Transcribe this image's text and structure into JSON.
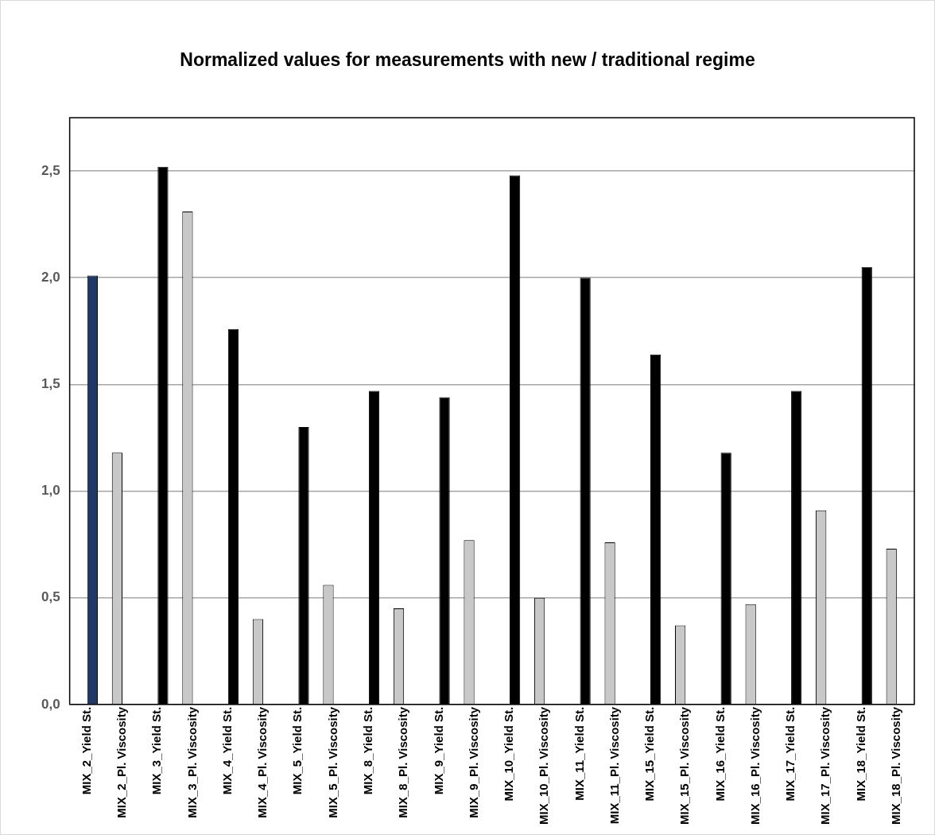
{
  "chart_data": {
    "type": "bar",
    "title": "Normalized values for measurements with new / traditional regime",
    "categories": [
      "MIX_2_Yield St.",
      "MIX_2_Pl. Viscosity",
      "MIX_3_Yield St.",
      "MIX_3_Pl. Viscosity",
      "MIX_4_Yield St.",
      "MIX_4_Pl. Viscosity",
      "MIX_5_Yield St.",
      "MIX_5_Pl. Viscosity",
      "MIX_8_Yield St.",
      "MIX_8_Pl. Viscosity",
      "MIX_9_Yield St.",
      "MIX_9_Pl. Viscosity",
      "MIX_10_Yield St.",
      "MIX_10_Pl. Viscosity",
      "MIX_11_Yield St.",
      "MIX_11_Pl. Viscosity",
      "MIX_15_Yield St.",
      "MIX_15_Pl. Viscosity",
      "MIX_16_Yield St.",
      "MIX_16_Pl. Viscosity",
      "MIX_17_Yield St.",
      "MIX_17_Pl. Viscosity",
      "MIX_18_Yield St.",
      "MIX_18_Pl. Viscosity"
    ],
    "series": [
      {
        "color": "#c8c8c8",
        "values": [
          null,
          1.18,
          null,
          2.31,
          null,
          0.4,
          null,
          0.56,
          null,
          0.45,
          null,
          0.77,
          null,
          0.5,
          null,
          0.76,
          null,
          0.37,
          null,
          0.47,
          null,
          0.91,
          null,
          0.73
        ]
      },
      {
        "colors": [
          "#1f3864",
          "#000000",
          "#000000",
          "#000000",
          "#000000",
          "#000000",
          "#000000",
          "#000000",
          "#000000",
          "#000000",
          "#000000",
          "#000000",
          "#000000",
          "#000000",
          "#000000",
          "#000000",
          "#000000",
          "#000000",
          "#000000",
          "#000000",
          "#000000",
          "#000000",
          "#000000",
          "#000000"
        ],
        "values": [
          2.01,
          null,
          2.52,
          null,
          1.76,
          null,
          1.3,
          null,
          1.47,
          null,
          1.44,
          null,
          2.48,
          null,
          2.0,
          null,
          1.64,
          null,
          1.18,
          null,
          1.47,
          null,
          2.05,
          null
        ]
      }
    ],
    "ylim": [
      0,
      2.75
    ],
    "yticks": [
      {
        "value": 0,
        "label": "0,0"
      },
      {
        "value": 0.5,
        "label": "0,5"
      },
      {
        "value": 1,
        "label": "1,0"
      },
      {
        "value": 1.5,
        "label": "1,5"
      },
      {
        "value": 2,
        "label": "2,0"
      },
      {
        "value": 2.5,
        "label": "2,5"
      }
    ],
    "grid": "y",
    "legend": false
  }
}
